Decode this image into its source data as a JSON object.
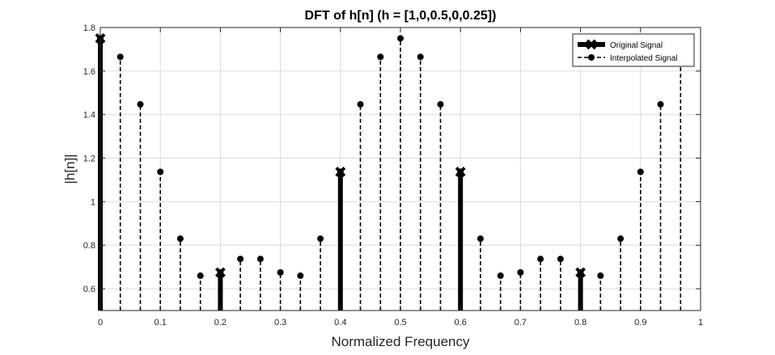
{
  "chart_data": {
    "type": "stem",
    "title": "DFT of h[n]  (h = [1,0,0.5,0,0.25])",
    "xlabel": "Normalized Frequency",
    "ylabel": "|h[n]|",
    "xlim": [
      0,
      1
    ],
    "ylim": [
      0.5,
      1.8
    ],
    "xticks": [
      0,
      0.1,
      0.2,
      0.3,
      0.4,
      0.5,
      0.6,
      0.7,
      0.8,
      0.9,
      1
    ],
    "xtick_labels": [
      "0",
      "0.1",
      "0.2",
      "0.3",
      "0.4",
      "0.5",
      "0.6",
      "0.7",
      "0.8",
      "0.9",
      "1"
    ],
    "yticks": [
      0.6,
      0.8,
      1,
      1.2,
      1.4,
      1.6,
      1.8
    ],
    "ytick_labels": [
      "0.6",
      "0.8",
      "1",
      "1.2",
      "1.4",
      "1.6",
      "1.8"
    ],
    "grid": true,
    "legend_position": "top-right",
    "series": [
      {
        "name": "Original Signal",
        "style": "solid-stem-x-marker",
        "color": "#000000",
        "x": [
          0,
          0.2,
          0.4,
          0.6,
          0.8
        ],
        "y": [
          1.75,
          0.675,
          1.137,
          1.137,
          0.675
        ]
      },
      {
        "name": "Interpolated Signal",
        "style": "dashed-stem-dot-marker",
        "color": "#000000",
        "x": [
          0,
          0.0333,
          0.0667,
          0.1,
          0.1333,
          0.1667,
          0.2,
          0.2333,
          0.2667,
          0.3,
          0.3333,
          0.3667,
          0.4,
          0.4333,
          0.4667,
          0.5,
          0.5333,
          0.5667,
          0.6,
          0.6333,
          0.6667,
          0.7,
          0.7333,
          0.7667,
          0.8,
          0.8333,
          0.8667,
          0.9,
          0.9333,
          0.9667
        ],
        "y": [
          1.75,
          1.665,
          1.447,
          1.137,
          0.83,
          0.66,
          0.675,
          0.737,
          0.737,
          0.675,
          0.66,
          0.83,
          1.137,
          1.447,
          1.665,
          1.75,
          1.665,
          1.447,
          1.137,
          0.83,
          0.66,
          0.675,
          0.737,
          0.737,
          0.675,
          0.66,
          0.83,
          1.137,
          1.447,
          1.665
        ]
      }
    ]
  }
}
